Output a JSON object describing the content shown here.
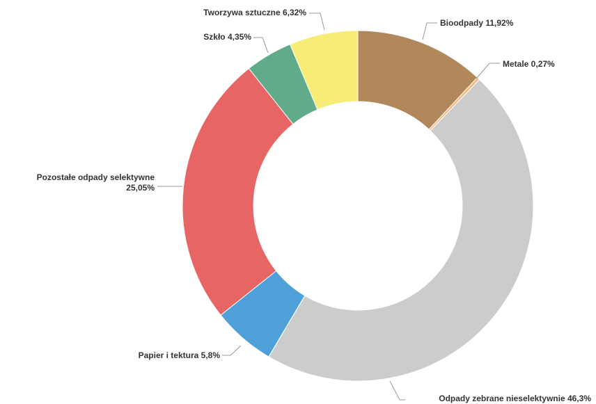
{
  "chart_data": {
    "type": "pie",
    "variant": "donut",
    "legend": "none",
    "slices": [
      {
        "label": "Bioodpady",
        "value_text": "11,92%",
        "value": 11.92,
        "color": "#b0885c"
      },
      {
        "label": "Metale",
        "value_text": "0,27%",
        "value": 0.27,
        "color": "#f5b97f"
      },
      {
        "label": "Odpady zebrane nieselektywnie",
        "value_text": "46,3%",
        "value": 46.3,
        "color": "#cccccc"
      },
      {
        "label": "Papier i tektura",
        "value_text": "5,8%",
        "value": 5.8,
        "color": "#4fa0d8"
      },
      {
        "label": "Pozostałe odpady selektywne",
        "value_text": "25,05%",
        "value": 25.05,
        "color": "#e86565"
      },
      {
        "label": "Szkło",
        "value_text": "4,35%",
        "value": 4.35,
        "color": "#62ab8a"
      },
      {
        "label": "Tworzywa sztuczne",
        "value_text": "6,32%",
        "value": 6.32,
        "color": "#f7ec76"
      }
    ]
  }
}
